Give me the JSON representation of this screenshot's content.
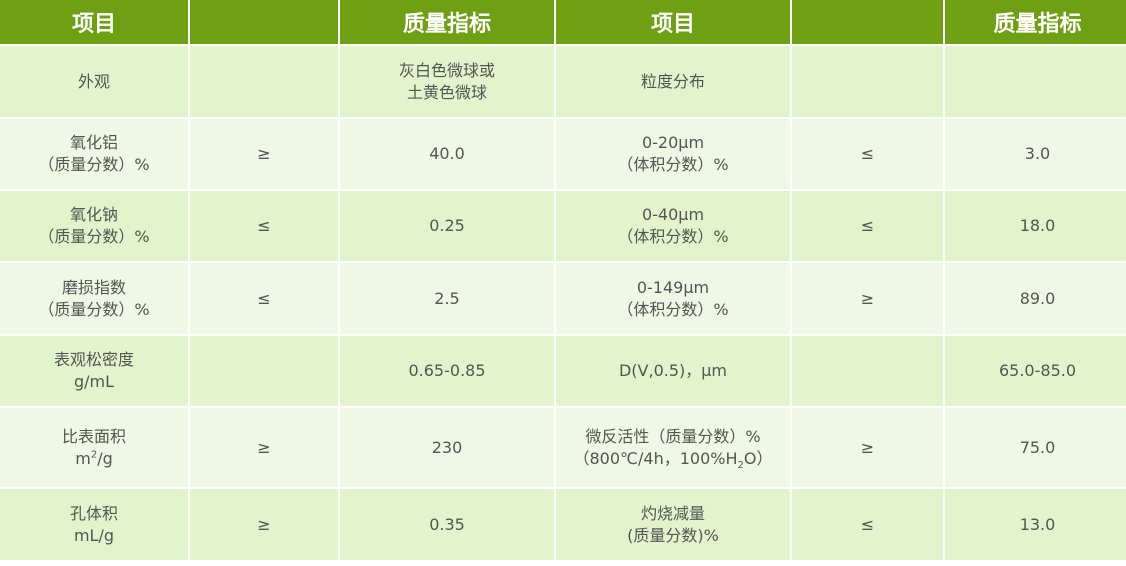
{
  "header": [
    "项目",
    "",
    "质量指标",
    "项目",
    "",
    "质量指标"
  ],
  "rows": [
    {
      "item1": [
        "外观",
        ""
      ],
      "op1": "",
      "val1": [
        "灰白色微球或",
        "土黄色微球"
      ],
      "item2": [
        "粒度分布",
        ""
      ],
      "op2": "",
      "val2": ""
    },
    {
      "item1": [
        "氧化铝",
        "（质量分数）%"
      ],
      "op1": "≥",
      "val1": [
        "40.0",
        ""
      ],
      "item2": [
        "0-20μm",
        "（体积分数）%"
      ],
      "op2": "≤",
      "val2": "3.0"
    },
    {
      "item1": [
        "氧化钠",
        "（质量分数）%"
      ],
      "op1": "≤",
      "val1": [
        "0.25",
        ""
      ],
      "item2": [
        "0-40μm",
        "（体积分数）%"
      ],
      "op2": "≤",
      "val2": "18.0"
    },
    {
      "item1": [
        "磨损指数",
        "（质量分数）%"
      ],
      "op1": "≤",
      "val1": [
        "2.5",
        ""
      ],
      "item2": [
        "0-149μm",
        "（体积分数）%"
      ],
      "op2": "≥",
      "val2": "89.0"
    },
    {
      "item1": [
        "表观松密度",
        "g/mL"
      ],
      "op1": "",
      "val1": [
        "0.65-0.85",
        ""
      ],
      "item2": [
        "D(V,0.5)，μm",
        ""
      ],
      "op2": "",
      "val2": "65.0-85.0"
    },
    {
      "item1": [
        "比表面积",
        ""
      ],
      "item1_unit": {
        "pre": "m",
        "sup": "2",
        "post": "/g"
      },
      "op1": "≥",
      "val1": [
        "230",
        ""
      ],
      "item2": [
        "微反活性（质量分数）%",
        ""
      ],
      "item2_line2": {
        "pre": "（800℃/4h，100%H",
        "sub": "2",
        "post": "O）"
      },
      "op2": "≥",
      "val2": "75.0"
    },
    {
      "item1": [
        "孔体积",
        "mL/g"
      ],
      "op1": "≥",
      "val1": [
        "0.35",
        ""
      ],
      "item2": [
        "灼烧减量",
        "(质量分数)%"
      ],
      "op2": "≤",
      "val2": "13.0"
    }
  ],
  "colors": {
    "header": "#6fa013",
    "row_odd": "#e2f4cc",
    "row_even": "#eff7e5",
    "text": "#555555"
  }
}
